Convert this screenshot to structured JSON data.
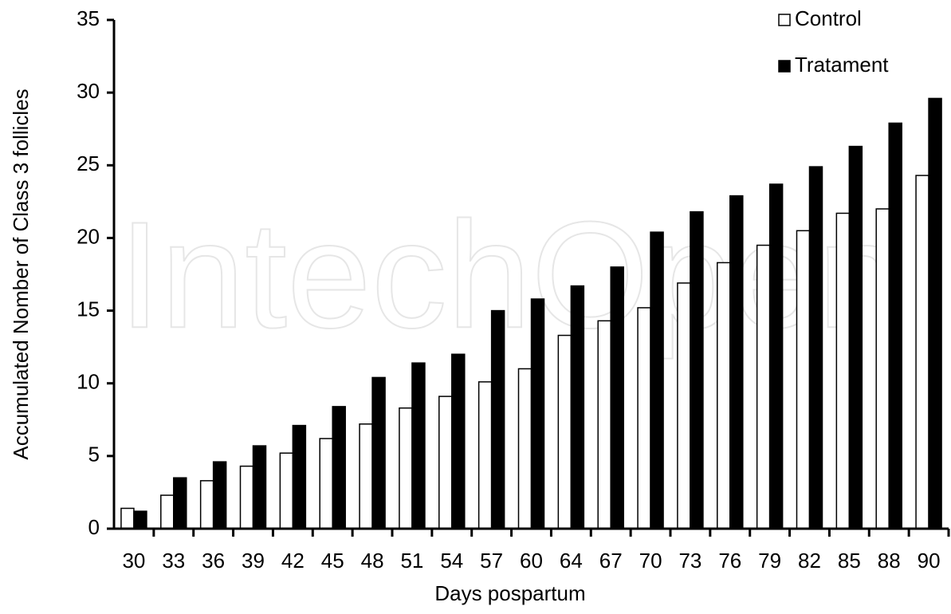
{
  "chart_data": {
    "type": "bar",
    "watermark": "IntechOpen",
    "xlabel": "Days pospartum",
    "ylabel": "Accumulated Nomber of Class 3 follicles",
    "categories": [
      "30",
      "33",
      "36",
      "39",
      "42",
      "45",
      "48",
      "51",
      "54",
      "57",
      "60",
      "64",
      "67",
      "70",
      "73",
      "76",
      "79",
      "82",
      "85",
      "88",
      "90"
    ],
    "series": [
      {
        "name": "Control",
        "color": "#ffffff",
        "values": [
          1.4,
          2.3,
          3.3,
          4.3,
          5.2,
          6.2,
          7.2,
          8.3,
          9.1,
          10.1,
          11.0,
          13.3,
          14.3,
          15.2,
          16.9,
          18.3,
          19.5,
          20.5,
          21.7,
          22.0,
          24.3
        ]
      },
      {
        "name": "Tratament",
        "color": "#000000",
        "values": [
          1.2,
          3.5,
          4.6,
          5.7,
          7.1,
          8.4,
          10.4,
          11.4,
          12.0,
          15.0,
          15.8,
          16.7,
          18.0,
          20.4,
          21.8,
          22.9,
          23.7,
          24.9,
          26.3,
          27.9,
          29.6
        ]
      }
    ],
    "ylim": [
      0,
      35
    ],
    "yticks": [
      0,
      5,
      10,
      15,
      20,
      25,
      30,
      35
    ],
    "grid": false,
    "legend": "top-right"
  }
}
